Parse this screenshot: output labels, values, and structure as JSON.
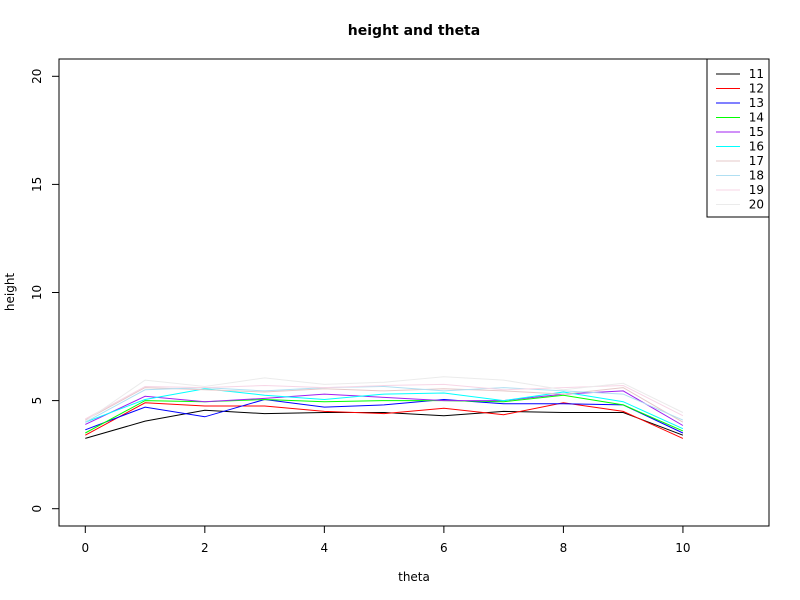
{
  "chart_data": {
    "type": "line",
    "title": "height and theta",
    "xlabel": "theta",
    "ylabel": "height",
    "xlim": [
      -0.44,
      11.44
    ],
    "ylim": [
      -0.8,
      20.8
    ],
    "x_ticks": [
      0,
      2,
      4,
      6,
      8,
      10
    ],
    "y_ticks": [
      0,
      5,
      10,
      15,
      20
    ],
    "grid": false,
    "legend_position": "top-right",
    "x": [
      0,
      1,
      2,
      3,
      4,
      5,
      6,
      7,
      8,
      9,
      10
    ],
    "series": [
      {
        "name": "11",
        "color": "#000000",
        "values": [
          3.25,
          4.05,
          4.55,
          4.4,
          4.45,
          4.45,
          4.3,
          4.5,
          4.45,
          4.45,
          3.4
        ]
      },
      {
        "name": "12",
        "color": "#ff0000",
        "values": [
          3.4,
          4.9,
          4.75,
          4.75,
          4.5,
          4.4,
          4.65,
          4.35,
          4.9,
          4.5,
          3.25
        ]
      },
      {
        "name": "13",
        "color": "#0000ff",
        "values": [
          3.65,
          4.7,
          4.25,
          5.05,
          4.7,
          4.8,
          5.05,
          4.85,
          4.85,
          4.8,
          3.5
        ]
      },
      {
        "name": "14",
        "color": "#00ff00",
        "values": [
          3.5,
          5.0,
          4.95,
          5.05,
          4.95,
          5.0,
          5.0,
          4.95,
          5.25,
          4.8,
          3.6
        ]
      },
      {
        "name": "15",
        "color": "#a020f0",
        "values": [
          3.9,
          5.2,
          4.95,
          5.1,
          5.3,
          5.15,
          5.0,
          5.0,
          5.3,
          5.45,
          3.85
        ]
      },
      {
        "name": "16",
        "color": "#00ffff",
        "values": [
          4.0,
          5.05,
          5.55,
          5.25,
          5.05,
          5.3,
          5.35,
          5.0,
          5.4,
          4.95,
          3.7
        ]
      },
      {
        "name": "17",
        "color": "#e6c8c8",
        "values": [
          4.1,
          5.6,
          5.5,
          5.4,
          5.55,
          5.45,
          5.55,
          5.45,
          5.3,
          5.6,
          4.0
        ]
      },
      {
        "name": "18",
        "color": "#b0dff2",
        "values": [
          4.0,
          5.5,
          5.6,
          5.45,
          5.6,
          5.65,
          5.45,
          5.6,
          5.45,
          5.3,
          4.1
        ]
      },
      {
        "name": "19",
        "color": "#f7d6e6",
        "values": [
          4.15,
          5.65,
          5.6,
          5.7,
          5.6,
          5.7,
          5.75,
          5.5,
          5.6,
          5.7,
          4.3
        ]
      },
      {
        "name": "20",
        "color": "#ebebeb",
        "values": [
          4.05,
          5.95,
          5.65,
          6.05,
          5.75,
          5.85,
          6.1,
          5.95,
          5.5,
          5.8,
          4.45
        ]
      }
    ]
  }
}
